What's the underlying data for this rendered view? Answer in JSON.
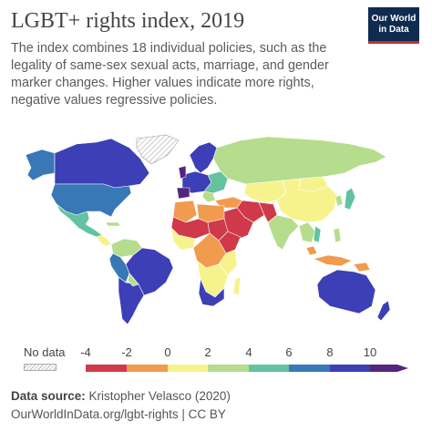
{
  "header": {
    "title": "LGBT+ rights index, 2019",
    "subtitle": "The index combines 18 individual policies, such as the legality of same-sex sexual acts, marriage, and gender marker changes. Higher values indicate more rights, negative values regressive policies."
  },
  "logo": {
    "line1": "Our World",
    "line2": "in Data"
  },
  "legend": {
    "no_data_label": "No data",
    "ticks": [
      "-4",
      "-2",
      "0",
      "2",
      "4",
      "6",
      "8",
      "10"
    ],
    "bins": [
      {
        "from": -4,
        "to": -2,
        "color": "#d0394a"
      },
      {
        "from": -2,
        "to": 0,
        "color": "#f19b4f"
      },
      {
        "from": 0,
        "to": 2,
        "color": "#f7f38c"
      },
      {
        "from": 2,
        "to": 4,
        "color": "#b5dd8d"
      },
      {
        "from": 4,
        "to": 6,
        "color": "#63c2a0"
      },
      {
        "from": 6,
        "to": 8,
        "color": "#3878b6"
      },
      {
        "from": 8,
        "to": 10,
        "color": "#3c3fb6"
      },
      {
        "from": 10,
        "to": 12,
        "color": "#552580"
      }
    ]
  },
  "footer": {
    "source_label": "Data source:",
    "source_value": "Kristopher Velasco (2020)",
    "url": "OurWorldInData.org/lgbt-rights | CC BY"
  }
}
